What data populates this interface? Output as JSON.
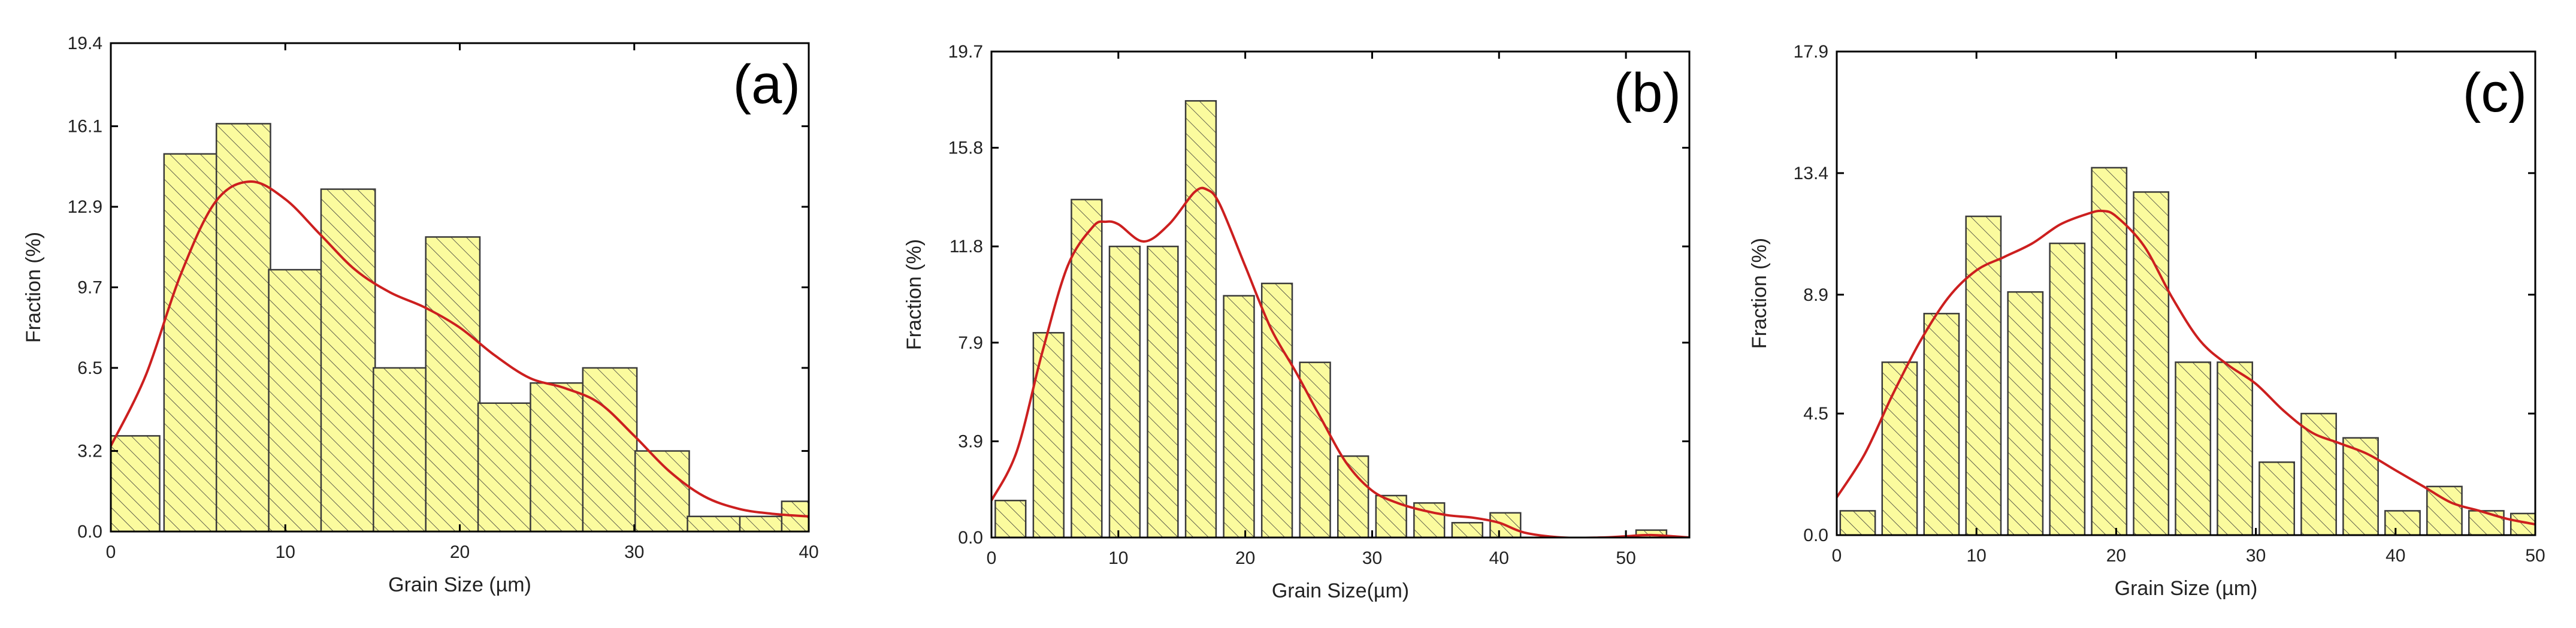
{
  "chart_data": [
    {
      "type": "bar",
      "panel_label": "(a)",
      "xlabel": "Grain Size (µm)",
      "ylabel": "Fraction (%)",
      "xlim": [
        0,
        40
      ],
      "ylim": [
        0,
        19.4
      ],
      "xticks": [
        0,
        10,
        20,
        30,
        40
      ],
      "yticks": [
        0.0,
        3.2,
        6.5,
        9.7,
        12.9,
        16.1,
        19.4
      ],
      "ytick_labels": [
        "0.0",
        "3.2",
        "6.5",
        "9.7",
        "12.9",
        "16.1",
        "19.4"
      ],
      "bin_width": 3.1,
      "bin_centers": [
        1.25,
        4.6,
        7.6,
        10.6,
        13.6,
        16.6,
        19.6,
        22.6,
        25.6,
        28.6,
        31.6,
        34.6,
        37.6,
        40.0
      ],
      "values": [
        3.8,
        15.0,
        16.2,
        10.4,
        13.6,
        6.5,
        11.7,
        5.1,
        5.9,
        6.5,
        3.2,
        0.6,
        0.6,
        1.2
      ],
      "fit_curve": {
        "x": [
          0,
          2,
          4,
          6,
          8,
          10,
          12,
          14,
          16,
          18,
          20,
          22,
          24,
          26,
          28,
          30,
          32,
          34,
          36,
          38,
          40
        ],
        "y": [
          3.4,
          6.2,
          10.2,
          13.1,
          13.9,
          13.2,
          11.8,
          10.4,
          9.5,
          8.9,
          8.1,
          7.0,
          6.1,
          5.7,
          5.1,
          3.8,
          2.4,
          1.4,
          0.9,
          0.7,
          0.6
        ]
      }
    },
    {
      "type": "bar",
      "panel_label": "(b)",
      "xlabel": "Grain Size(µm)",
      "ylabel": "Fraction (%)",
      "xlim": [
        0,
        55
      ],
      "ylim": [
        0,
        19.7
      ],
      "xticks": [
        0,
        10,
        20,
        30,
        40,
        50
      ],
      "yticks": [
        0.0,
        3.9,
        7.9,
        11.8,
        15.8,
        19.7
      ],
      "ytick_labels": [
        "0.0",
        "3.9",
        "7.9",
        "11.8",
        "15.8",
        "19.7"
      ],
      "bin_width": 2.4,
      "bin_centers": [
        1.5,
        4.5,
        7.5,
        10.5,
        13.5,
        16.5,
        19.5,
        22.5,
        25.5,
        28.5,
        31.5,
        34.5,
        37.5,
        40.5,
        52.0
      ],
      "values": [
        1.5,
        8.3,
        13.7,
        11.8,
        11.8,
        17.7,
        9.8,
        10.3,
        7.1,
        3.3,
        1.7,
        1.4,
        0.6,
        1.0,
        0.3
      ],
      "fit_curve": {
        "x": [
          0,
          2,
          4,
          6,
          8,
          9,
          10,
          12,
          14,
          16,
          17,
          18,
          20,
          22,
          24,
          26,
          28,
          30,
          32,
          34,
          36,
          38,
          40,
          42,
          45,
          48,
          50,
          52,
          55
        ],
        "y": [
          1.5,
          3.5,
          7.5,
          11.0,
          12.6,
          12.8,
          12.7,
          12.0,
          12.7,
          14.0,
          14.1,
          13.5,
          11.0,
          8.5,
          6.7,
          4.8,
          3.0,
          1.9,
          1.4,
          1.1,
          0.9,
          0.8,
          0.6,
          0.2,
          0.0,
          0.0,
          0.05,
          0.1,
          0.0
        ]
      }
    },
    {
      "type": "bar",
      "panel_label": "(c)",
      "xlabel": "Grain Size (µm)",
      "ylabel": "Fraction (%)",
      "xlim": [
        0,
        50
      ],
      "ylim": [
        0,
        17.9
      ],
      "xticks": [
        0,
        10,
        20,
        30,
        40,
        50
      ],
      "yticks": [
        0.0,
        4.5,
        8.9,
        13.4,
        17.9
      ],
      "ytick_labels": [
        "0.0",
        "4.5",
        "8.9",
        "13.4",
        "17.9"
      ],
      "bin_width": 2.5,
      "bin_centers": [
        1.5,
        4.5,
        7.5,
        10.5,
        13.5,
        16.5,
        19.5,
        22.5,
        25.5,
        28.5,
        31.5,
        34.5,
        37.5,
        40.5,
        43.5,
        46.5,
        49.5
      ],
      "values": [
        0.9,
        6.4,
        8.2,
        11.8,
        9.0,
        10.8,
        13.6,
        12.7,
        6.4,
        6.4,
        2.7,
        4.5,
        3.6,
        0.9,
        1.8,
        0.9,
        0.8
      ],
      "fit_curve": {
        "x": [
          0,
          2,
          4,
          6,
          8,
          10,
          12,
          14,
          16,
          18,
          19,
          20,
          22,
          24,
          26,
          28,
          30,
          32,
          34,
          36,
          38,
          40,
          42,
          44,
          46,
          48,
          50
        ],
        "y": [
          1.4,
          3.0,
          5.2,
          7.2,
          8.8,
          9.8,
          10.3,
          10.8,
          11.5,
          11.9,
          12.0,
          11.8,
          10.7,
          8.8,
          7.2,
          6.3,
          5.6,
          4.6,
          3.8,
          3.4,
          3.0,
          2.4,
          1.8,
          1.2,
          0.9,
          0.6,
          0.4
        ]
      }
    }
  ]
}
